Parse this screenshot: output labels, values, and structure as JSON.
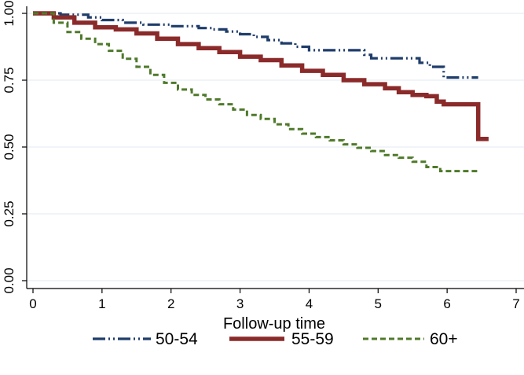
{
  "chart_data": {
    "type": "line",
    "title": "",
    "xlabel": "Follow-up time",
    "ylabel": "",
    "xlim": [
      0,
      7
    ],
    "ylim": [
      0,
      1
    ],
    "x_ticks": [
      0,
      1,
      2,
      3,
      4,
      5,
      6,
      7
    ],
    "y_ticks": [
      0.0,
      0.25,
      0.5,
      0.75,
      1.0
    ],
    "y_tick_labels": [
      "0.00",
      "0.25",
      "0.50",
      "0.75",
      "1.00"
    ],
    "grid": true,
    "legend": "bottom",
    "series": [
      {
        "name": "50-54",
        "color": "#1f3d6b",
        "style": "dash-dot-dot",
        "step_points": [
          [
            0,
            1.0
          ],
          [
            0.4,
            0.995
          ],
          [
            0.8,
            0.985
          ],
          [
            1.0,
            0.975
          ],
          [
            1.3,
            0.965
          ],
          [
            1.6,
            0.958
          ],
          [
            2.0,
            0.952
          ],
          [
            2.4,
            0.945
          ],
          [
            2.6,
            0.94
          ],
          [
            2.8,
            0.932
          ],
          [
            3.0,
            0.922
          ],
          [
            3.2,
            0.912
          ],
          [
            3.4,
            0.9
          ],
          [
            3.6,
            0.888
          ],
          [
            3.8,
            0.875
          ],
          [
            4.0,
            0.862
          ],
          [
            4.5,
            0.862
          ],
          [
            4.8,
            0.845
          ],
          [
            4.9,
            0.832
          ],
          [
            5.5,
            0.832
          ],
          [
            5.6,
            0.815
          ],
          [
            5.75,
            0.8
          ],
          [
            5.85,
            0.8
          ],
          [
            5.95,
            0.76
          ],
          [
            6.45,
            0.76
          ]
        ]
      },
      {
        "name": "55-59",
        "color": "#8b2a2a",
        "style": "solid",
        "step_points": [
          [
            0,
            1.0
          ],
          [
            0.3,
            0.985
          ],
          [
            0.6,
            0.965
          ],
          [
            0.9,
            0.948
          ],
          [
            1.2,
            0.94
          ],
          [
            1.5,
            0.925
          ],
          [
            1.8,
            0.905
          ],
          [
            2.1,
            0.885
          ],
          [
            2.4,
            0.87
          ],
          [
            2.7,
            0.855
          ],
          [
            3.0,
            0.838
          ],
          [
            3.3,
            0.825
          ],
          [
            3.6,
            0.805
          ],
          [
            3.9,
            0.785
          ],
          [
            4.2,
            0.77
          ],
          [
            4.5,
            0.75
          ],
          [
            4.8,
            0.735
          ],
          [
            5.1,
            0.72
          ],
          [
            5.3,
            0.705
          ],
          [
            5.5,
            0.695
          ],
          [
            5.7,
            0.69
          ],
          [
            5.85,
            0.67
          ],
          [
            5.95,
            0.66
          ],
          [
            6.45,
            0.66
          ],
          [
            6.45,
            0.53
          ],
          [
            6.6,
            0.53
          ]
        ]
      },
      {
        "name": "60+",
        "color": "#4f7a2a",
        "style": "dashed",
        "step_points": [
          [
            0,
            1.0
          ],
          [
            0.3,
            0.965
          ],
          [
            0.5,
            0.93
          ],
          [
            0.7,
            0.905
          ],
          [
            0.9,
            0.885
          ],
          [
            1.1,
            0.86
          ],
          [
            1.3,
            0.83
          ],
          [
            1.5,
            0.8
          ],
          [
            1.7,
            0.77
          ],
          [
            1.9,
            0.74
          ],
          [
            2.1,
            0.715
          ],
          [
            2.3,
            0.695
          ],
          [
            2.5,
            0.678
          ],
          [
            2.7,
            0.66
          ],
          [
            2.9,
            0.64
          ],
          [
            3.1,
            0.62
          ],
          [
            3.3,
            0.605
          ],
          [
            3.5,
            0.585
          ],
          [
            3.7,
            0.567
          ],
          [
            3.9,
            0.55
          ],
          [
            4.1,
            0.537
          ],
          [
            4.3,
            0.525
          ],
          [
            4.5,
            0.51
          ],
          [
            4.7,
            0.497
          ],
          [
            4.9,
            0.485
          ],
          [
            5.1,
            0.47
          ],
          [
            5.3,
            0.46
          ],
          [
            5.5,
            0.445
          ],
          [
            5.7,
            0.425
          ],
          [
            5.9,
            0.41
          ],
          [
            6.45,
            0.41
          ]
        ]
      }
    ]
  }
}
